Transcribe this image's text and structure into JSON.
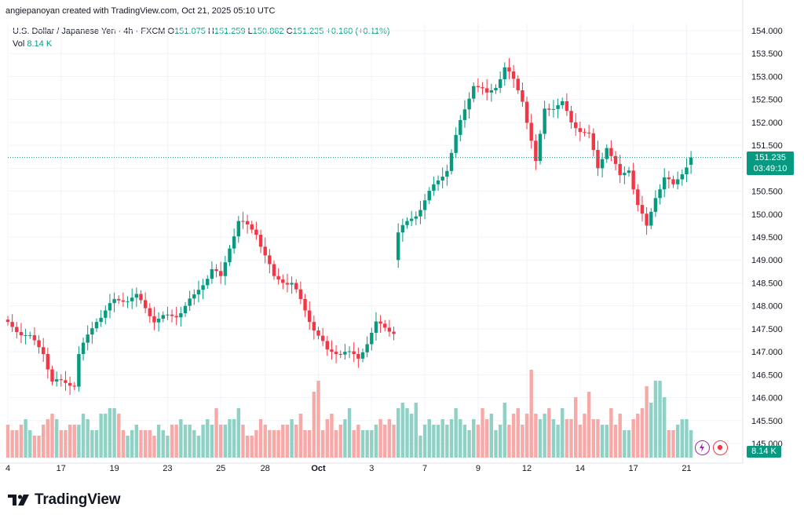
{
  "header": {
    "text": "angiepanoyan created with TradingView.com, Oct 21, 2025 05:10 UTC"
  },
  "legend": {
    "symbol": "U.S. Dollar / Japanese Yen · 4h · FXCM",
    "open_label": "O",
    "open": "151.075",
    "high_label": "H",
    "high": "151.259",
    "low_label": "L",
    "low": "150.862",
    "close_label": "C",
    "close": "151.235",
    "change": "+0.160 (+0.11%)",
    "vol_label": "Vol",
    "vol": "8.14 K"
  },
  "price_tag": {
    "price": "151.235",
    "countdown": "03:49:10"
  },
  "vol_tag": "8.14 K",
  "logo": {
    "text": "TradingView"
  },
  "icons": {
    "flash": "flash-icon",
    "record": "record-icon"
  },
  "colors": {
    "up": "#089981",
    "down": "#f23645",
    "vol_up": "#8fd1c4",
    "vol_down": "#f7a9a7",
    "grid": "#f0f3fa"
  },
  "chart_data": {
    "type": "candlestick",
    "title": "U.S. Dollar / Japanese Yen · 4h · FXCM",
    "ylim": [
      144.9,
      154.2
    ],
    "y_ticks": [
      "154.000",
      "153.500",
      "153.000",
      "152.500",
      "152.000",
      "151.500",
      "151.000",
      "150.500",
      "150.000",
      "149.500",
      "149.000",
      "148.500",
      "148.000",
      "147.500",
      "147.000",
      "146.500",
      "146.000",
      "145.500",
      "145.000"
    ],
    "x_ticks": [
      {
        "label": "4",
        "bar": 0
      },
      {
        "label": "17",
        "bar": 12
      },
      {
        "label": "19",
        "bar": 24
      },
      {
        "label": "23",
        "bar": 36
      },
      {
        "label": "25",
        "bar": 48
      },
      {
        "label": "28",
        "bar": 58
      },
      {
        "label": "Oct",
        "bar": 70
      },
      {
        "label": "3",
        "bar": 82
      },
      {
        "label": "7",
        "bar": 94
      },
      {
        "label": "9",
        "bar": 106
      },
      {
        "label": "12",
        "bar": 117
      },
      {
        "label": "14",
        "bar": 129
      },
      {
        "label": "17",
        "bar": 141
      },
      {
        "label": "21",
        "bar": 153
      }
    ],
    "gap_after_bar": 87,
    "anchors": [
      {
        "bar": 0,
        "close": 147.6
      },
      {
        "bar": 5,
        "close": 147.3
      },
      {
        "bar": 8,
        "close": 147.0
      },
      {
        "bar": 10,
        "close": 146.35
      },
      {
        "bar": 15,
        "close": 146.3
      },
      {
        "bar": 16,
        "close": 146.95
      },
      {
        "bar": 20,
        "close": 147.7
      },
      {
        "bar": 24,
        "close": 148.1
      },
      {
        "bar": 29,
        "close": 148.2
      },
      {
        "bar": 33,
        "close": 147.7
      },
      {
        "bar": 38,
        "close": 147.8
      },
      {
        "bar": 42,
        "close": 148.2
      },
      {
        "bar": 46,
        "close": 148.8
      },
      {
        "bar": 48,
        "close": 148.6
      },
      {
        "bar": 50,
        "close": 149.3
      },
      {
        "bar": 52,
        "close": 149.85
      },
      {
        "bar": 56,
        "close": 149.6
      },
      {
        "bar": 60,
        "close": 148.6
      },
      {
        "bar": 64,
        "close": 148.5
      },
      {
        "bar": 68,
        "close": 147.7
      },
      {
        "bar": 72,
        "close": 147.0
      },
      {
        "bar": 76,
        "close": 147.0
      },
      {
        "bar": 79,
        "close": 146.85
      },
      {
        "bar": 83,
        "close": 147.6
      },
      {
        "bar": 87,
        "close": 147.45
      },
      {
        "bar": 88,
        "close": 149.6
      },
      {
        "bar": 92,
        "close": 150.0
      },
      {
        "bar": 96,
        "close": 150.6
      },
      {
        "bar": 99,
        "close": 151.0
      },
      {
        "bar": 102,
        "close": 152.0
      },
      {
        "bar": 105,
        "close": 152.85
      },
      {
        "bar": 108,
        "close": 152.6
      },
      {
        "bar": 110,
        "close": 152.8
      },
      {
        "bar": 112,
        "close": 153.2
      },
      {
        "bar": 114,
        "close": 152.9
      },
      {
        "bar": 116,
        "close": 152.5
      },
      {
        "bar": 118,
        "close": 151.6
      },
      {
        "bar": 119,
        "close": 151.1
      },
      {
        "bar": 121,
        "close": 152.3
      },
      {
        "bar": 125,
        "close": 152.4
      },
      {
        "bar": 127,
        "close": 152.0
      },
      {
        "bar": 131,
        "close": 151.7
      },
      {
        "bar": 133,
        "close": 151.0
      },
      {
        "bar": 135,
        "close": 151.5
      },
      {
        "bar": 138,
        "close": 150.8
      },
      {
        "bar": 140,
        "close": 151.0
      },
      {
        "bar": 142,
        "close": 150.2
      },
      {
        "bar": 144,
        "close": 149.7
      },
      {
        "bar": 146,
        "close": 150.4
      },
      {
        "bar": 148,
        "close": 150.8
      },
      {
        "bar": 150,
        "close": 150.6
      },
      {
        "bar": 154,
        "close": 151.235
      }
    ],
    "volume": [
      6,
      5,
      5,
      6,
      7,
      5,
      4,
      4,
      6,
      7,
      8,
      7,
      5,
      5,
      6,
      6,
      6,
      8,
      7,
      5,
      5,
      8,
      8,
      9,
      9,
      8,
      5,
      4,
      5,
      6,
      5,
      5,
      5,
      4,
      6,
      5,
      4,
      6,
      6,
      7,
      6,
      6,
      5,
      4,
      6,
      7,
      6,
      9,
      6,
      6,
      7,
      7,
      9,
      6,
      4,
      4,
      5,
      7,
      6,
      5,
      5,
      5,
      6,
      6,
      7,
      6,
      8,
      5,
      5,
      12,
      14,
      5,
      7,
      8,
      5,
      6,
      7,
      9,
      5,
      6,
      5,
      5,
      5,
      6,
      7,
      6,
      7,
      6,
      9,
      10,
      9,
      8,
      10,
      4,
      6,
      7,
      6,
      6,
      7,
      6,
      7,
      9,
      7,
      6,
      5,
      7,
      6,
      9,
      7,
      8,
      5,
      6,
      10,
      6,
      8,
      9,
      6,
      8,
      16,
      8,
      7,
      8,
      9,
      7,
      6,
      9,
      7,
      7,
      11,
      6,
      8,
      12,
      7,
      7,
      6,
      6,
      9,
      6,
      8,
      5,
      5,
      7,
      8,
      9,
      13,
      10,
      14,
      14,
      11,
      5,
      5,
      6,
      7,
      7,
      5,
      8
    ],
    "volume_ylim": [
      0,
      20
    ]
  }
}
